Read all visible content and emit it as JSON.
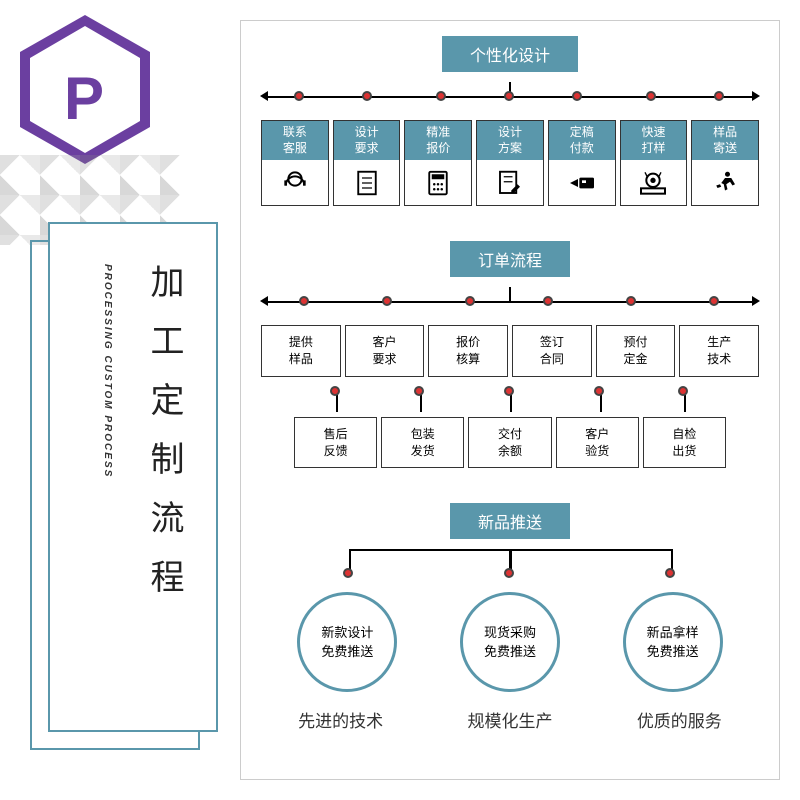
{
  "logo": {
    "letter": "P"
  },
  "sidebar": {
    "title_cn": "加工定制流程",
    "title_en": "PROCESSING CUSTOM PROCESS"
  },
  "colors": {
    "accent": "#5a97ab",
    "logo": "#6b3fa0",
    "dot": "#d33"
  },
  "sections": {
    "design": {
      "header": "个性化设计",
      "steps": [
        {
          "l1": "联系",
          "l2": "客服",
          "icon": "headset"
        },
        {
          "l1": "设计",
          "l2": "要求",
          "icon": "doc"
        },
        {
          "l1": "精准",
          "l2": "报价",
          "icon": "calc"
        },
        {
          "l1": "设计",
          "l2": "方案",
          "icon": "edit"
        },
        {
          "l1": "定稿",
          "l2": "付款",
          "icon": "pay"
        },
        {
          "l1": "快速",
          "l2": "打样",
          "icon": "machine"
        },
        {
          "l1": "样品",
          "l2": "寄送",
          "icon": "run"
        }
      ]
    },
    "order": {
      "header": "订单流程",
      "row1": [
        {
          "l1": "提供",
          "l2": "样品"
        },
        {
          "l1": "客户",
          "l2": "要求"
        },
        {
          "l1": "报价",
          "l2": "核算"
        },
        {
          "l1": "签订",
          "l2": "合同"
        },
        {
          "l1": "预付",
          "l2": "定金"
        },
        {
          "l1": "生产",
          "l2": "技术"
        }
      ],
      "row2": [
        {
          "l1": "售后",
          "l2": "反馈"
        },
        {
          "l1": "包装",
          "l2": "发货"
        },
        {
          "l1": "交付",
          "l2": "余额"
        },
        {
          "l1": "客户",
          "l2": "验货"
        },
        {
          "l1": "自检",
          "l2": "出货"
        }
      ]
    },
    "new": {
      "header": "新品推送",
      "circles": [
        {
          "l1": "新款设计",
          "l2": "免费推送"
        },
        {
          "l1": "现货采购",
          "l2": "免费推送"
        },
        {
          "l1": "新品拿样",
          "l2": "免费推送"
        }
      ]
    },
    "footer": [
      "先进的技术",
      "规模化生产",
      "优质的服务"
    ]
  }
}
